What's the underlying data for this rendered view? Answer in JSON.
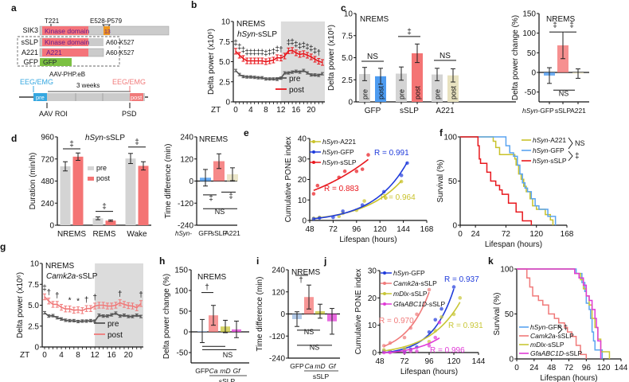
{
  "panel_labels": [
    "a",
    "b",
    "c",
    "d",
    "e",
    "f",
    "g",
    "h",
    "i",
    "j",
    "k"
  ],
  "colors": {
    "pre": "#555555",
    "post_red": "#e8171d",
    "post_pink": "#f07a7a",
    "grey_bar": "#d4d4d4",
    "gfp_blue": "#4d9bf0",
    "sslp_red": "#f47474",
    "a221_khaki": "#e8e2c0",
    "a221_line": "#c9c22b",
    "gfp_line_e": "#1f3bdb",
    "gfp_line_k": "#5aa4f0",
    "mdlx": "#c8c636",
    "gfa": "#e03ad6",
    "kinase": "#f4747a",
    "orange": "#f0961e",
    "green": "#7cc142",
    "cyan": "#35a7e0",
    "shade": "#dcdcdc"
  },
  "panel_a": {
    "rows": [
      {
        "name": "SIK3",
        "segments": [
          "Kinase domain",
          "13"
        ],
        "right": ""
      },
      {
        "name": "sSLP",
        "segments": [
          "Kinase domain"
        ],
        "right": "A60-K527"
      },
      {
        "name": "A221",
        "segments": [
          "A221"
        ],
        "right": "A60-K527"
      },
      {
        "name": "GFP",
        "segments": [
          "GFP"
        ],
        "right": ""
      }
    ],
    "t221": "T221",
    "e528": "E528-P579",
    "vector": "AAV-PHP.eB",
    "eeg_pre": "EEG/EMG",
    "eeg_post": "EEG/EMG",
    "weeks": "3 weeks",
    "pre_box": "pre",
    "post_box": "post",
    "aav": "AAV ROI",
    "psd": "PSD"
  },
  "chart_data": [
    {
      "id": "b",
      "type": "line",
      "title": "NREMS",
      "subtitle": "hSyn-sSLP",
      "xlabel": "ZT",
      "ylabel": "Delta power (x10⁶)",
      "x": [
        0,
        1,
        2,
        3,
        4,
        5,
        6,
        7,
        8,
        9,
        10,
        11,
        12,
        13,
        14,
        15,
        16,
        17,
        18,
        19,
        20,
        21,
        22,
        23
      ],
      "xticks": [
        "0",
        "4",
        "8",
        "12",
        "16",
        "20"
      ],
      "yticks": [
        "0",
        "2.5",
        "5.0",
        "7.5",
        "10"
      ],
      "ylim": [
        0,
        10
      ],
      "shaded_from": 12,
      "series": [
        {
          "name": "pre",
          "values": [
            3.9,
            3.4,
            3.15,
            3.1,
            3.1,
            3.05,
            3.0,
            3.0,
            2.85,
            2.85,
            2.85,
            2.8,
            2.95,
            3.6,
            3.6,
            3.7,
            3.8,
            3.7,
            3.9,
            3.6,
            3.35,
            3.35,
            3.3,
            3.5
          ]
        },
        {
          "name": "post",
          "values": [
            6.3,
            5.8,
            5.4,
            5.1,
            5.1,
            5.1,
            5.1,
            5.1,
            5.0,
            5.1,
            5.2,
            5.5,
            5.45,
            5.7,
            6.35,
            6.4,
            6.1,
            5.9,
            6.0,
            5.8,
            5.6,
            5.3,
            5.05,
            4.9
          ]
        }
      ],
      "annotations": [
        "‡",
        "‡",
        "‡",
        "‡",
        "‡",
        "‡",
        "‡",
        "‡",
        "‡",
        "‡",
        "‡",
        "‡",
        "†",
        "",
        "‡",
        "‡",
        "‡",
        "‡",
        "‡",
        "‡",
        "‡",
        "‡",
        "†",
        ""
      ]
    },
    {
      "id": "c1",
      "type": "bar",
      "title": "NREMS",
      "ylabel": "Delta power (x10⁶)",
      "groups": [
        "GFP",
        "sSLP",
        "A221"
      ],
      "bar_labels": [
        "pre",
        "post",
        "pre",
        "post",
        "pre",
        "post"
      ],
      "values": [
        3.15,
        2.9,
        3.2,
        5.5,
        3.1,
        3.0
      ],
      "errors": [
        0.75,
        0.9,
        0.75,
        1.05,
        0.7,
        0.75
      ],
      "yticks": [
        "0",
        "2.5",
        "5.0",
        "7.5",
        "10"
      ],
      "ylim": [
        0,
        10
      ],
      "sig": [
        "NS",
        "‡",
        "NS"
      ]
    },
    {
      "id": "c2",
      "type": "bar",
      "title": "NREMS",
      "ylabel": "Delta power change (%)",
      "categories": [
        "hSyn-GFP",
        "sSLP",
        "A221"
      ],
      "values": [
        -8,
        69,
        -3
      ],
      "errors": [
        20,
        34,
        12
      ],
      "yticks": [
        "-50",
        "0",
        "50",
        "100",
        "150"
      ],
      "ylim": [
        -75,
        150
      ],
      "sig": [
        "‡",
        "‡",
        "NS"
      ]
    },
    {
      "id": "d1",
      "type": "bar",
      "title": "hSyn-sSLP",
      "ylabel": "Duration (min/h)",
      "categories": [
        "NREMS",
        "REMS",
        "Wake"
      ],
      "series": [
        {
          "name": "pre",
          "values": [
            640,
            75,
            725
          ],
          "errors": [
            50,
            15,
            55
          ]
        },
        {
          "name": "post",
          "values": [
            745,
            50,
            645
          ],
          "errors": [
            40,
            8,
            45
          ]
        }
      ],
      "yticks": [
        "0",
        "240",
        "480",
        "720",
        "960"
      ],
      "ylim": [
        0,
        960
      ],
      "sig": [
        "‡",
        "‡",
        "‡"
      ]
    },
    {
      "id": "d2",
      "type": "bar",
      "title": "NREMS",
      "ylabel": "Time difference (min)",
      "xprefix": "hSyn-",
      "categories": [
        "GFP",
        "sSLP",
        "A221"
      ],
      "values": [
        18,
        108,
        37
      ],
      "errors": [
        45,
        40,
        35
      ],
      "yticks": [
        "-240",
        "-120",
        "0",
        "120",
        "240"
      ],
      "ylim": [
        -240,
        240
      ],
      "sig": [
        "‡",
        "‡",
        "NS"
      ]
    },
    {
      "id": "e",
      "type": "scatter",
      "ylabel": "Cumulative PONE index",
      "xlabel": "Lifespan (hours)",
      "xticks": [
        "48",
        "72",
        "96",
        "120",
        "144",
        "168"
      ],
      "yticks": [
        "0",
        "10",
        "20",
        "30",
        "40"
      ],
      "xlim": [
        48,
        168
      ],
      "ylim": [
        0,
        40
      ],
      "series": [
        {
          "name": "hSyn-A221",
          "R": "R = 0.964",
          "points": [
            [
              52,
              1
            ],
            [
              58,
              1.5
            ],
            [
              78,
              2
            ],
            [
              82,
              3.5
            ],
            [
              96,
              5
            ],
            [
              104,
              9.5
            ],
            [
              126,
              11
            ],
            [
              142,
              19
            ]
          ]
        },
        {
          "name": "hSyn-GFP",
          "R": "R = 0.991",
          "points": [
            [
              52,
              0.8
            ],
            [
              58,
              1.2
            ],
            [
              72,
              1.5
            ],
            [
              82,
              4.5
            ],
            [
              102,
              7.5
            ],
            [
              124,
              14
            ],
            [
              142,
              22
            ],
            [
              148,
              28
            ]
          ]
        },
        {
          "name": "hSyn-sSLP",
          "R": "R = 0.883",
          "points": [
            [
              52,
              13
            ],
            [
              56,
              17
            ],
            [
              78,
              21
            ],
            [
              84,
              24
            ],
            [
              96,
              24
            ],
            [
              102,
              25
            ],
            [
              108,
              32
            ]
          ]
        }
      ]
    },
    {
      "id": "f",
      "type": "line",
      "ylabel": "Survival (%)",
      "xlabel": "Lifespan (hours)",
      "xticks": [
        "0",
        "24",
        "72",
        "120",
        "168"
      ],
      "yticks": [
        "0",
        "50",
        "100"
      ],
      "xlim": [
        0,
        168
      ],
      "ylim": [
        0,
        100
      ],
      "series": [
        {
          "name": "hSyn-A221"
        },
        {
          "name": "hSyn-GFP"
        },
        {
          "name": "hSyn-sSLP"
        }
      ],
      "sig": [
        "NS",
        "‡"
      ]
    },
    {
      "id": "g",
      "type": "line",
      "title": "NREMS",
      "subtitle": "Camk2a-sSLP",
      "xlabel": "ZT",
      "ylabel": "Delta power (x10⁶)",
      "x": [
        0,
        1,
        2,
        3,
        4,
        5,
        6,
        7,
        8,
        9,
        10,
        11,
        12,
        13,
        14,
        15,
        16,
        17,
        18,
        19,
        20,
        21,
        22,
        23
      ],
      "xticks": [
        "0",
        "4",
        "8",
        "12",
        "16",
        "20"
      ],
      "yticks": [
        "0",
        "2.5",
        "5.0",
        "7.5",
        "10"
      ],
      "ylim": [
        0,
        10
      ],
      "shaded_from": 12,
      "series": [
        {
          "name": "pre",
          "values": [
            4.1,
            3.7,
            3.75,
            3.5,
            3.35,
            3.2,
            3.15,
            3.15,
            3.05,
            3.1,
            3.1,
            3.15,
            3.1,
            3.8,
            3.7,
            3.7,
            3.85,
            4.05,
            3.7,
            3.8,
            3.65,
            3.65,
            3.8,
            3.65
          ]
        },
        {
          "name": "post",
          "values": [
            6.0,
            5.5,
            5.1,
            5.1,
            4.75,
            4.55,
            4.55,
            4.4,
            4.45,
            4.35,
            4.6,
            4.6,
            4.9,
            5.0,
            5.0,
            4.9,
            4.9,
            5.0,
            5.3,
            5.1,
            4.95,
            4.9,
            4.7,
            5.2
          ]
        }
      ],
      "annotations": [
        "‡",
        "†",
        "",
        "†",
        "",
        "",
        "*",
        "",
        "*",
        "",
        "†",
        "",
        "†",
        "",
        "",
        "",
        "",
        "",
        "†",
        "",
        "",
        "",
        "",
        "†"
      ]
    },
    {
      "id": "h",
      "type": "bar",
      "title": "NREMS",
      "ylabel": "Delta power change (%)",
      "categories": [
        "GFP",
        "Ca",
        "mD",
        "Gf"
      ],
      "group_label": "sSLP",
      "values": [
        2,
        40,
        13,
        6
      ],
      "errors": [
        28,
        24,
        15,
        20
      ],
      "yticks": [
        "-50",
        "0",
        "50",
        "100",
        "150"
      ],
      "ylim": [
        -75,
        150
      ],
      "sig": [
        "†",
        "NS"
      ]
    },
    {
      "id": "i",
      "type": "bar",
      "title": "NREMS",
      "ylabel": "Time difference (min)",
      "categories": [
        "GFP",
        "Ca",
        "mD",
        "Gf"
      ],
      "group_label": "sSLP",
      "values": [
        -28,
        92,
        15,
        -40
      ],
      "errors": [
        40,
        65,
        38,
        70
      ],
      "yticks": [
        "-240",
        "-120",
        "0",
        "120",
        "240"
      ],
      "ylim": [
        -240,
        240
      ],
      "sig": [
        "†",
        "NS",
        "NS"
      ]
    },
    {
      "id": "j",
      "type": "scatter",
      "ylabel": "Cumulative PONE index",
      "xlabel": "Lifespan (hours)",
      "xticks": [
        "48",
        "72",
        "96",
        "120",
        "144"
      ],
      "yticks": [
        "0",
        "10",
        "20",
        "30"
      ],
      "xlim": [
        48,
        144
      ],
      "ylim": [
        0,
        30
      ],
      "series": [
        {
          "name": "hSyn-GFP",
          "R": "R = 0.937",
          "points": [
            [
              52,
              0.5
            ],
            [
              58,
              0.5
            ],
            [
              72,
              0.5
            ],
            [
              78,
              1.2
            ],
            [
              84,
              2
            ],
            [
              96,
              7.5
            ],
            [
              102,
              12
            ],
            [
              108,
              16
            ],
            [
              120,
              24
            ]
          ]
        },
        {
          "name": "Camk2a-sSLP",
          "R": "R = 0.970",
          "points": [
            [
              52,
              2.5
            ],
            [
              58,
              3.5
            ],
            [
              72,
              5.5
            ],
            [
              78,
              9
            ],
            [
              84,
              14
            ],
            [
              96,
              23
            ]
          ]
        },
        {
          "name": "mDlx-sSLP",
          "R": "R = 0.931",
          "points": [
            [
              52,
              1
            ],
            [
              72,
              1.5
            ],
            [
              96,
              4
            ],
            [
              102,
              8
            ],
            [
              108,
              13
            ],
            [
              120,
              14
            ],
            [
              126,
              20
            ]
          ]
        },
        {
          "name": "GfaABC1D-sSLP",
          "R": "R = 0.996",
          "points": [
            [
              52,
              0
            ],
            [
              58,
              0
            ],
            [
              72,
              0
            ],
            [
              78,
              0.5
            ],
            [
              84,
              0.5
            ],
            [
              96,
              2.5
            ],
            [
              102,
              5.5
            ],
            [
              106,
              11
            ]
          ]
        }
      ]
    },
    {
      "id": "k",
      "type": "line",
      "ylabel": "Survival (%)",
      "xlabel": "Lifespan (hours)",
      "xticks": [
        "0",
        "24",
        "48",
        "72",
        "96",
        "120",
        "144"
      ],
      "yticks": [
        "0",
        "50",
        "100"
      ],
      "xlim": [
        0,
        144
      ],
      "ylim": [
        0,
        100
      ],
      "series": [
        {
          "name": "hSyn-GFP"
        },
        {
          "name": "Camk2a-sSLP"
        },
        {
          "name": "mDlx-sSLP"
        },
        {
          "name": "GfaABC1D-sSLP"
        }
      ],
      "sig": [
        "‡"
      ]
    }
  ]
}
